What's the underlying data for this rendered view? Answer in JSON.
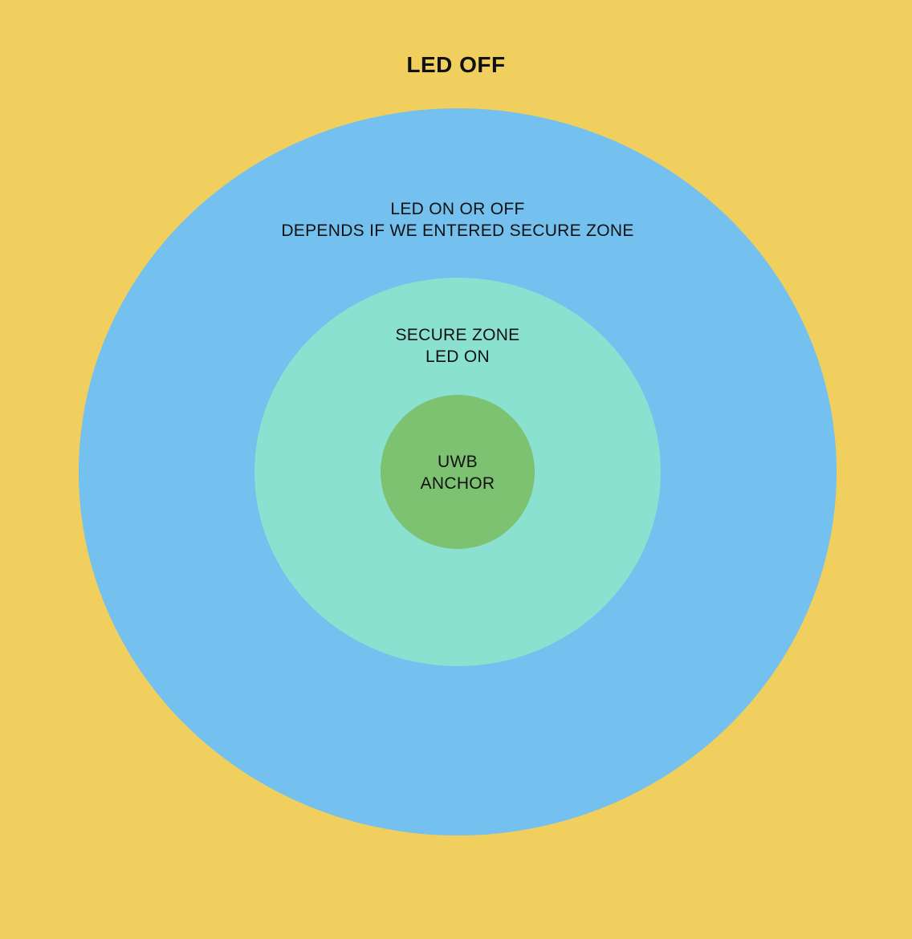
{
  "title": "LED OFF",
  "colors": {
    "background": "#F0CF5F",
    "outer_zone": "#74C0EF",
    "secure_zone": "#8BE1D0",
    "anchor": "#7DC271",
    "text": "#111111"
  },
  "zones": {
    "outer": {
      "line1": "LED ON OR OFF",
      "line2": "DEPENDS IF WE ENTERED SECURE ZONE"
    },
    "secure": {
      "line1": "SECURE ZONE",
      "line2": "LED ON"
    },
    "anchor": {
      "line1": "UWB",
      "line2": "ANCHOR"
    }
  }
}
